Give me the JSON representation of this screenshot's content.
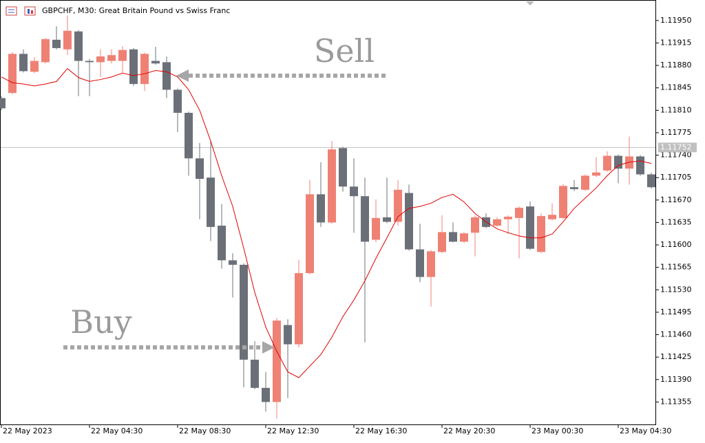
{
  "chart_data": {
    "type": "candlestick",
    "title": "GBPCHF, M30:  Great Britain Pound vs Swiss Franc",
    "annotations": [
      "Sell",
      "Buy"
    ],
    "categories": [
      "22 May 2023",
      null,
      null,
      null,
      null,
      null,
      null,
      null,
      "22 May 04:30",
      null,
      null,
      null,
      null,
      null,
      null,
      null,
      "22 May 08:30",
      null,
      null,
      null,
      null,
      null,
      null,
      null,
      "22 May 12:30",
      null,
      null,
      null,
      null,
      null,
      null,
      null,
      "22 May 16:30",
      null,
      null,
      null,
      null,
      null,
      null,
      null,
      "22 May 20:30",
      null,
      null,
      null,
      null,
      null,
      null,
      null,
      "23 May 00:30",
      null,
      null,
      null,
      null,
      null,
      null,
      null,
      "23 May 04:30",
      null,
      null,
      null
    ],
    "open": [
      1.11829,
      1.11837,
      1.11898,
      1.1187,
      1.11885,
      1.1192,
      1.11905,
      1.11933,
      1.11887,
      1.11885,
      1.11887,
      1.11887,
      1.11905,
      1.11851,
      1.11887,
      1.11885,
      1.11842,
      1.11806,
      1.11735,
      1.11705,
      1.1163,
      1.11576,
      1.11569,
      1.11421,
      1.11377,
      1.11355,
      1.11475,
      1.11445,
      1.11556,
      1.11679,
      1.11635,
      1.11751,
      1.11691,
      1.11676,
      1.11608,
      1.11643,
      1.11636,
      1.11681,
      1.11593,
      1.1155,
      1.11589,
      1.1162,
      1.11605,
      1.11619,
      1.11643,
      1.1163,
      1.1164,
      1.11642,
      1.1166,
      1.11589,
      1.1164,
      1.11642,
      1.1169,
      1.11686,
      1.11708,
      1.11716,
      1.11739,
      1.11719,
      1.11738,
      1.1171
    ],
    "high": [
      1.11832,
      1.11901,
      1.11905,
      1.11893,
      1.11923,
      1.11941,
      1.11958,
      1.11935,
      1.1189,
      1.11905,
      1.11905,
      1.1191,
      1.11907,
      1.119,
      1.11909,
      1.11894,
      1.11844,
      1.11808,
      1.11759,
      1.11762,
      1.11664,
      1.11587,
      1.11571,
      1.1145,
      1.11402,
      1.11486,
      1.11484,
      1.11577,
      1.11701,
      1.11729,
      1.11762,
      1.11753,
      1.11735,
      1.11705,
      1.11671,
      1.11705,
      1.11701,
      1.11694,
      1.11633,
      1.11592,
      1.11646,
      1.11635,
      1.1162,
      1.11646,
      1.11649,
      1.11643,
      1.11646,
      1.1166,
      1.11668,
      1.11649,
      1.11665,
      1.11695,
      1.11701,
      1.1171,
      1.11737,
      1.11746,
      1.11741,
      1.11769,
      1.1174,
      1.11713
    ],
    "low": [
      1.1181,
      1.11835,
      1.11869,
      1.11868,
      1.11883,
      1.11905,
      1.11896,
      1.11832,
      1.11832,
      1.11862,
      1.11883,
      1.11869,
      1.11848,
      1.1184,
      1.11881,
      1.11829,
      1.11776,
      1.11708,
      1.1164,
      1.11606,
      1.11563,
      1.11518,
      1.11378,
      1.11375,
      1.1134,
      1.11329,
      1.11361,
      1.1144,
      1.11554,
      1.11628,
      1.11633,
      1.11683,
      1.11619,
      1.11448,
      1.11604,
      1.11634,
      1.1163,
      1.11591,
      1.11542,
      1.11504,
      1.11587,
      1.11604,
      1.11603,
      1.11582,
      1.11626,
      1.11628,
      1.11617,
      1.11579,
      1.11592,
      1.11587,
      1.11638,
      1.1164,
      1.11684,
      1.11684,
      1.11706,
      1.11714,
      1.11696,
      1.11694,
      1.11708,
      1.11688
    ],
    "close": [
      1.11813,
      1.11898,
      1.11871,
      1.11887,
      1.11921,
      1.11907,
      1.11934,
      1.11887,
      1.11885,
      1.11894,
      1.11896,
      1.11904,
      1.11851,
      1.11898,
      1.11883,
      1.11842,
      1.11806,
      1.11735,
      1.11703,
      1.11628,
      1.11576,
      1.11569,
      1.11421,
      1.11377,
      1.11355,
      1.11482,
      1.11445,
      1.11556,
      1.11679,
      1.11635,
      1.11749,
      1.11691,
      1.11676,
      1.11605,
      1.11642,
      1.11636,
      1.11686,
      1.11593,
      1.1155,
      1.1159,
      1.1162,
      1.11605,
      1.11618,
      1.11643,
      1.11628,
      1.1164,
      1.11644,
      1.11658,
      1.11594,
      1.11645,
      1.11647,
      1.11692,
      1.11687,
      1.11708,
      1.11713,
      1.11739,
      1.11719,
      1.11738,
      1.1171,
      1.1169
    ],
    "up_color": "#ef8174",
    "down_color": "#6b7078",
    "ma": {
      "color": "#e00000",
      "values": [
        1.11862,
        1.11853,
        1.11851,
        1.11848,
        1.11851,
        1.11855,
        1.11875,
        1.11861,
        1.11855,
        1.11858,
        1.11862,
        1.11868,
        1.11864,
        1.11867,
        1.11872,
        1.1187,
        1.11862,
        1.11842,
        1.1181,
        1.11762,
        1.11708,
        1.1166,
        1.11595,
        1.11526,
        1.11472,
        1.11434,
        1.11402,
        1.11393,
        1.11411,
        1.11429,
        1.11456,
        1.11488,
        1.11514,
        1.11544,
        1.11579,
        1.11611,
        1.11644,
        1.11657,
        1.1166,
        1.11665,
        1.11674,
        1.11679,
        1.11667,
        1.11649,
        1.11636,
        1.11625,
        1.11619,
        1.11614,
        1.11611,
        1.11611,
        1.11617,
        1.11636,
        1.11657,
        1.11673,
        1.11689,
        1.11708,
        1.11724,
        1.11729,
        1.11731,
        1.11727
      ]
    },
    "current_price": 1.11752,
    "ylim": [
      1.1132,
      1.11982
    ],
    "yticks": [
      1.11355,
      {
        "value": 1.1139,
        "label": "1.11390"
      },
      1.11425,
      {
        "value": 1.1146,
        "label": "1.11460"
      },
      1.11495,
      {
        "value": 1.1153,
        "label": "1.11530"
      },
      1.11565,
      {
        "value": 1.116,
        "label": "1.11600"
      },
      1.11635,
      {
        "value": 1.1167,
        "label": "1.11670"
      },
      1.11705,
      {
        "value": 1.1174,
        "label": "1.11740"
      },
      1.11775,
      {
        "value": 1.1181,
        "label": "1.11810"
      },
      1.11845,
      {
        "value": 1.1188,
        "label": "1.11880"
      },
      1.11915,
      {
        "value": 1.1195,
        "label": "1.11950"
      }
    ]
  }
}
